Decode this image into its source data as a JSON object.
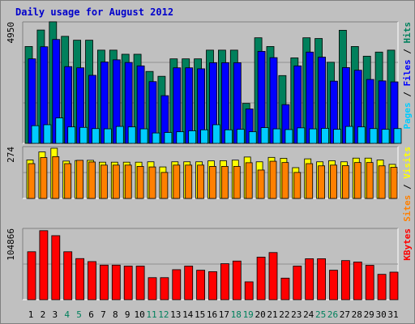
{
  "chart_data": {
    "type": "bar",
    "title": "Daily usage for August 2012",
    "categories": [
      "1",
      "2",
      "3",
      "4",
      "5",
      "6",
      "7",
      "8",
      "9",
      "10",
      "11",
      "12",
      "13",
      "14",
      "15",
      "16",
      "17",
      "18",
      "19",
      "20",
      "21",
      "22",
      "23",
      "24",
      "25",
      "26",
      "27",
      "28",
      "29",
      "30",
      "31"
    ],
    "weekend_days": [
      "4",
      "5",
      "11",
      "12",
      "18",
      "19",
      "25",
      "26"
    ],
    "panels": [
      {
        "name": "hits-files-pages",
        "ytick_label": "4950",
        "ymax": 4950,
        "legend": [
          {
            "text": "Pages",
            "color": "#00ccff"
          },
          {
            "text": " / ",
            "color": "#000000"
          },
          {
            "text": "Files",
            "color": "#0000ff"
          },
          {
            "text": " / ",
            "color": "#000000"
          },
          {
            "text": "Hits",
            "color": "#00805c"
          }
        ],
        "series": [
          {
            "name": "Hits",
            "color": "#00805c",
            "values": [
              4000,
              4680,
              5020,
              4420,
              4260,
              4260,
              3850,
              3850,
              3680,
              3680,
              2970,
              2770,
              3490,
              3490,
              3490,
              3850,
              3850,
              3850,
              1650,
              4360,
              4000,
              2800,
              3530,
              4360,
              4330,
              3350,
              4670,
              4000,
              3600,
              3770,
              3850
            ]
          },
          {
            "name": "Files",
            "color": "#0000ff",
            "values": [
              3490,
              3990,
              4290,
              3170,
              3120,
              2810,
              3360,
              3450,
              3340,
              3200,
              2550,
              1970,
              3120,
              3120,
              3080,
              3330,
              3330,
              3330,
              1420,
              3800,
              3540,
              1600,
              3200,
              3770,
              3560,
              2570,
              3130,
              3020,
              2640,
              2580,
              2540
            ]
          },
          {
            "name": "Pages",
            "color": "#00ccff",
            "values": [
              730,
              770,
              1050,
              680,
              660,
              610,
              600,
              700,
              680,
              600,
              430,
              450,
              480,
              520,
              560,
              770,
              560,
              580,
              480,
              650,
              600,
              570,
              640,
              600,
              620,
              580,
              700,
              680,
              610,
              580,
              610
            ]
          }
        ]
      },
      {
        "name": "visits-sites",
        "ytick_label": "274",
        "ymax": 274,
        "legend": [
          {
            "text": "Sites",
            "color": "#ff8000"
          },
          {
            "text": " / ",
            "color": "#000000"
          },
          {
            "text": "Visits",
            "color": "#ffff00"
          }
        ],
        "series": [
          {
            "name": "Visits",
            "color": "#ffff00",
            "values": [
              210,
              254,
              274,
              204,
              207,
              208,
              198,
              198,
              198,
              198,
              200,
              172,
              200,
              200,
              200,
              205,
              206,
              209,
              226,
              200,
              224,
              219,
              168,
              216,
              200,
              206,
              200,
              220,
              220,
              210,
              186
            ]
          },
          {
            "name": "Sites",
            "color": "#ff8000",
            "values": [
              190,
              223,
              228,
              190,
              208,
              199,
              182,
              182,
              182,
              175,
              172,
              142,
              182,
              182,
              182,
              175,
              175,
              175,
              195,
              155,
              203,
              196,
              142,
              190,
              178,
              182,
              179,
              196,
              196,
              178,
              170
            ]
          }
        ]
      },
      {
        "name": "kbytes",
        "ytick_label": "104866",
        "ymax": 104866,
        "legend": [
          {
            "text": "KBytes",
            "color": "#ff0000"
          }
        ],
        "series": [
          {
            "name": "KBytes",
            "color": "#ff0000",
            "values": [
              72200,
              103900,
              96400,
              72200,
              61900,
              57400,
              52100,
              52100,
              50600,
              50600,
              33200,
              33200,
              45200,
              50600,
              44400,
              42200,
              54200,
              58200,
              26900,
              64100,
              71000,
              32500,
              50600,
              61700,
              61700,
              44400,
              58900,
              56700,
              51800,
              38200,
              41500
            ]
          }
        ]
      }
    ]
  }
}
